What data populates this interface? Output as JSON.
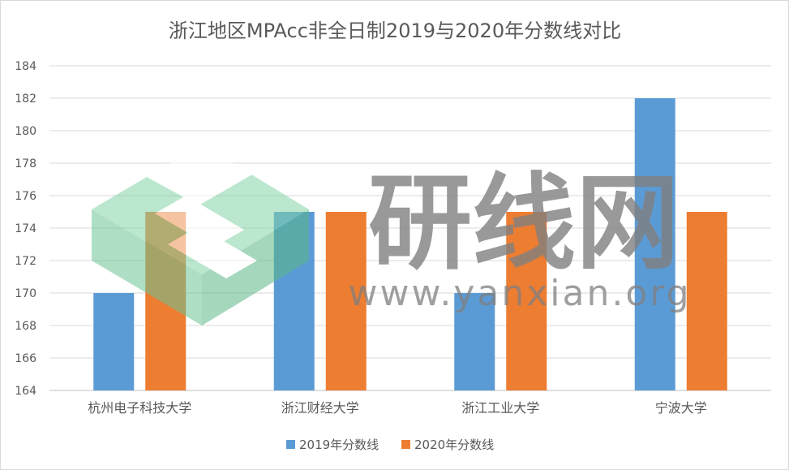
{
  "chart_data": {
    "type": "bar",
    "title": "浙江地区MPAcc非全日制2019与2020年分数线对比",
    "categories": [
      "杭州电子科技大学",
      "浙江财经大学",
      "浙江工业大学",
      "宁波大学"
    ],
    "series": [
      {
        "name": "2019年分数线",
        "values": [
          170,
          175,
          170,
          182
        ],
        "color": "#5b9bd5"
      },
      {
        "name": "2020年分数线",
        "values": [
          175,
          175,
          175,
          175
        ],
        "color": "#ed7d31"
      }
    ],
    "ylim": [
      164,
      184
    ],
    "yticks": [
      164,
      166,
      168,
      170,
      172,
      174,
      176,
      178,
      180,
      182,
      184
    ],
    "grid": true,
    "legend_position": "bottom"
  },
  "watermark": {
    "text": "研线网",
    "url": "www.yanxian.org"
  }
}
